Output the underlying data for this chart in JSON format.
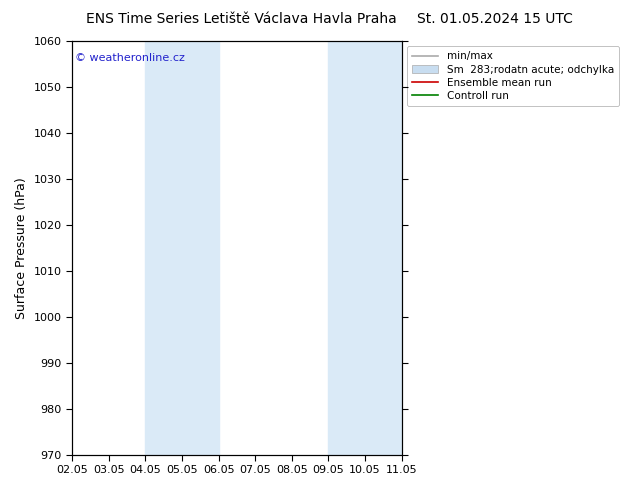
{
  "title_left": "ENS Time Series Letiště Václava Havla Praha",
  "title_right": "St. 01.05.2024 15 UTC",
  "ylabel": "Surface Pressure (hPa)",
  "ylim": [
    970,
    1060
  ],
  "yticks": [
    970,
    980,
    990,
    1000,
    1010,
    1020,
    1030,
    1040,
    1050,
    1060
  ],
  "xlim": [
    0,
    9
  ],
  "xtick_labels": [
    "02.05",
    "03.05",
    "04.05",
    "05.05",
    "06.05",
    "07.05",
    "08.05",
    "09.05",
    "10.05",
    "11.05"
  ],
  "xtick_positions": [
    0,
    1,
    2,
    3,
    4,
    5,
    6,
    7,
    8,
    9
  ],
  "shading_bands": [
    {
      "x_start": 2,
      "x_end": 4,
      "color": "#daeaf7"
    },
    {
      "x_start": 7,
      "x_end": 9,
      "color": "#daeaf7"
    }
  ],
  "watermark": "© weatheronline.cz",
  "watermark_color": "#2222cc",
  "legend_label_1": "min/max",
  "legend_label_2": "Sm  283;rodatn acute; odchylka",
  "legend_label_3": "Ensemble mean run",
  "legend_label_4": "Controll run",
  "legend_color_line": "#aaaaaa",
  "legend_color_patch": "#c8ddf0",
  "legend_color_red": "#cc0000",
  "legend_color_green": "#008000",
  "background_color": "#ffffff",
  "title_fontsize": 10,
  "axis_label_fontsize": 9,
  "tick_fontsize": 8,
  "legend_fontsize": 7.5
}
